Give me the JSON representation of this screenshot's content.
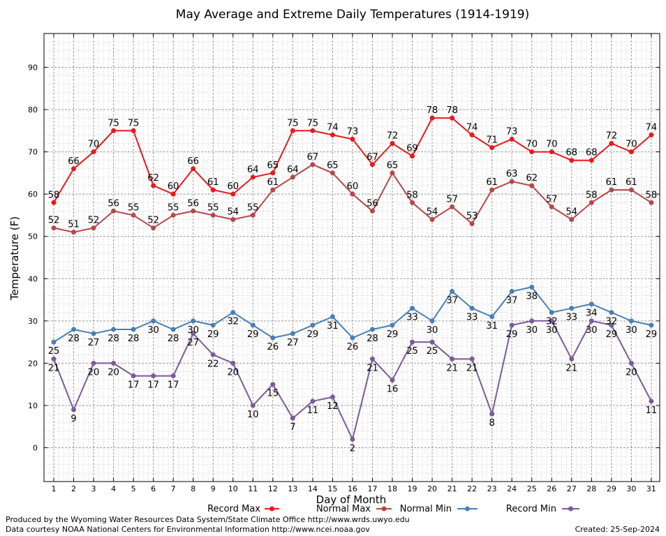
{
  "chart_data": {
    "type": "line",
    "title": "May Average and Extreme Daily Temperatures (1914-1919)",
    "xlabel": "Day of Month",
    "ylabel": "Temperature (F)",
    "ylim": [
      -8,
      98
    ],
    "yticks": [
      0,
      10,
      20,
      30,
      40,
      50,
      60,
      70,
      80,
      90
    ],
    "grid": true,
    "legend_position": "bottom",
    "categories": [
      1,
      2,
      3,
      4,
      5,
      6,
      7,
      8,
      9,
      10,
      11,
      12,
      13,
      14,
      15,
      16,
      17,
      18,
      19,
      20,
      21,
      22,
      23,
      24,
      25,
      26,
      27,
      28,
      29,
      30,
      31
    ],
    "series": [
      {
        "name": "Record Max",
        "color": "#e8191c",
        "values": [
          58,
          66,
          70,
          75,
          75,
          62,
          60,
          66,
          61,
          60,
          64,
          65,
          75,
          75,
          74,
          73,
          67,
          72,
          69,
          78,
          78,
          74,
          71,
          73,
          70,
          70,
          68,
          68,
          72,
          70,
          74
        ]
      },
      {
        "name": "Normal Max",
        "color": "#b5484a",
        "values": [
          52,
          51,
          52,
          56,
          55,
          52,
          55,
          56,
          55,
          54,
          55,
          61,
          64,
          67,
          65,
          60,
          56,
          65,
          58,
          54,
          57,
          53,
          61,
          63,
          62,
          57,
          54,
          58,
          61,
          61,
          58
        ]
      },
      {
        "name": "Normal Min",
        "color": "#4a7fb5",
        "values": [
          25,
          28,
          27,
          28,
          28,
          30,
          28,
          30,
          29,
          32,
          29,
          26,
          27,
          29,
          31,
          26,
          28,
          29,
          33,
          30,
          37,
          33,
          31,
          37,
          38,
          32,
          33,
          34,
          32,
          30,
          29
        ]
      },
      {
        "name": "Record Min",
        "color": "#7b5a9a",
        "values": [
          21,
          9,
          20,
          20,
          17,
          17,
          17,
          27,
          22,
          20,
          10,
          15,
          7,
          11,
          12,
          2,
          21,
          16,
          25,
          25,
          21,
          21,
          8,
          29,
          30,
          30,
          21,
          30,
          29,
          20,
          11
        ]
      }
    ]
  },
  "footer": {
    "line1": "Produced by the Wyoming Water Resources Data System/State Climate Office http://www.wrds.uwyo.edu",
    "line2": "Data courtesy NOAA National Centers for Environmental Information http://www.ncei.noaa.gov",
    "created": "Created:  25-Sep-2024"
  }
}
